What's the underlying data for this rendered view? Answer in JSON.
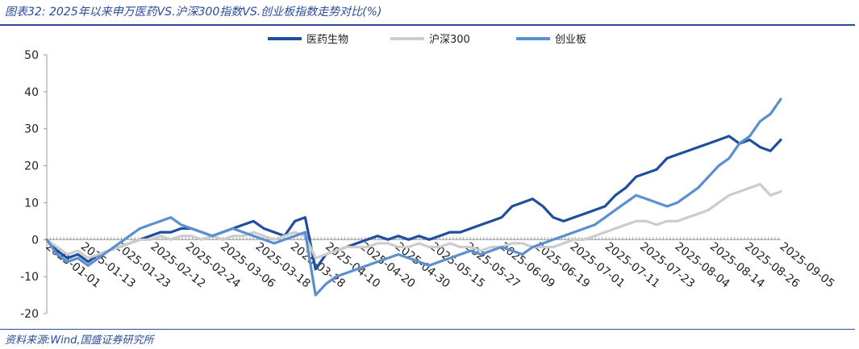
{
  "header": {
    "title": "图表32:  2025年以来申万医药VS.沪深300指数VS.创业板指数走势对比(%)"
  },
  "footer": {
    "source": "资料来源:Wind,国盛证券研究所"
  },
  "chart_data": {
    "type": "line",
    "ylim": [
      -20,
      50
    ],
    "yticks": [
      -20,
      -10,
      0,
      10,
      20,
      30,
      40,
      50
    ],
    "x_tick_labels": [
      "2025-01-01",
      "2025-01-13",
      "2025-01-23",
      "2025-02-12",
      "2025-02-24",
      "2025-03-06",
      "2025-03-18",
      "2025-03-28",
      "2025-04-10",
      "2025-04-20",
      "2025-04-30",
      "2025-05-15",
      "2025-05-27",
      "2025-06-09",
      "2025-06-19",
      "2025-07-01",
      "2025-07-11",
      "2025-07-23",
      "2025-08-04",
      "2025-08-14",
      "2025-08-26",
      "2025-09-05"
    ],
    "legend_position": "top-center",
    "series": [
      {
        "name": "医药生物",
        "color": "#1f4e9e",
        "values": [
          0,
          -3,
          -5,
          -4,
          -6,
          -4,
          -3,
          -2,
          -1,
          0,
          1,
          2,
          2,
          3,
          3,
          2,
          1,
          2,
          3,
          4,
          5,
          3,
          2,
          1,
          5,
          6,
          -8,
          -4,
          -3,
          -2,
          -1,
          0,
          1,
          0,
          1,
          0,
          1,
          0,
          1,
          2,
          2,
          3,
          4,
          5,
          6,
          9,
          10,
          11,
          9,
          6,
          5,
          6,
          7,
          8,
          9,
          12,
          14,
          17,
          18,
          19,
          22,
          23,
          24,
          25,
          26,
          27,
          28,
          26,
          27,
          25,
          24,
          27
        ]
      },
      {
        "name": "沪深300",
        "color": "#cccccc",
        "values": [
          0,
          -2,
          -4,
          -3,
          -5,
          -4,
          -3,
          -2,
          -1,
          0,
          0,
          1,
          0,
          1,
          1,
          0,
          1,
          0,
          1,
          1,
          2,
          1,
          0,
          1,
          2,
          1,
          -5,
          -4,
          -3,
          -2,
          -2,
          -2,
          -1,
          -1,
          -2,
          -2,
          -1,
          -2,
          -2,
          -1,
          -2,
          -2,
          -3,
          -2,
          -2,
          -1,
          -1,
          -2,
          -2,
          -2,
          -1,
          0,
          0,
          1,
          2,
          3,
          4,
          5,
          5,
          4,
          5,
          5,
          6,
          7,
          8,
          10,
          12,
          13,
          14,
          15,
          12,
          13
        ]
      },
      {
        "name": "创业板",
        "color": "#5b8fd0",
        "values": [
          0,
          -4,
          -6,
          -5,
          -7,
          -5,
          -3,
          -1,
          1,
          3,
          4,
          5,
          6,
          4,
          3,
          2,
          1,
          2,
          3,
          2,
          1,
          0,
          -1,
          0,
          1,
          2,
          -15,
          -12,
          -10,
          -9,
          -8,
          -7,
          -6,
          -5,
          -4,
          -5,
          -6,
          -7,
          -6,
          -5,
          -4,
          -3,
          -4,
          -3,
          -2,
          -3,
          -4,
          -2,
          -1,
          0,
          1,
          2,
          3,
          4,
          6,
          8,
          10,
          12,
          11,
          10,
          9,
          10,
          12,
          14,
          17,
          20,
          22,
          26,
          28,
          32,
          34,
          38
        ]
      }
    ]
  }
}
